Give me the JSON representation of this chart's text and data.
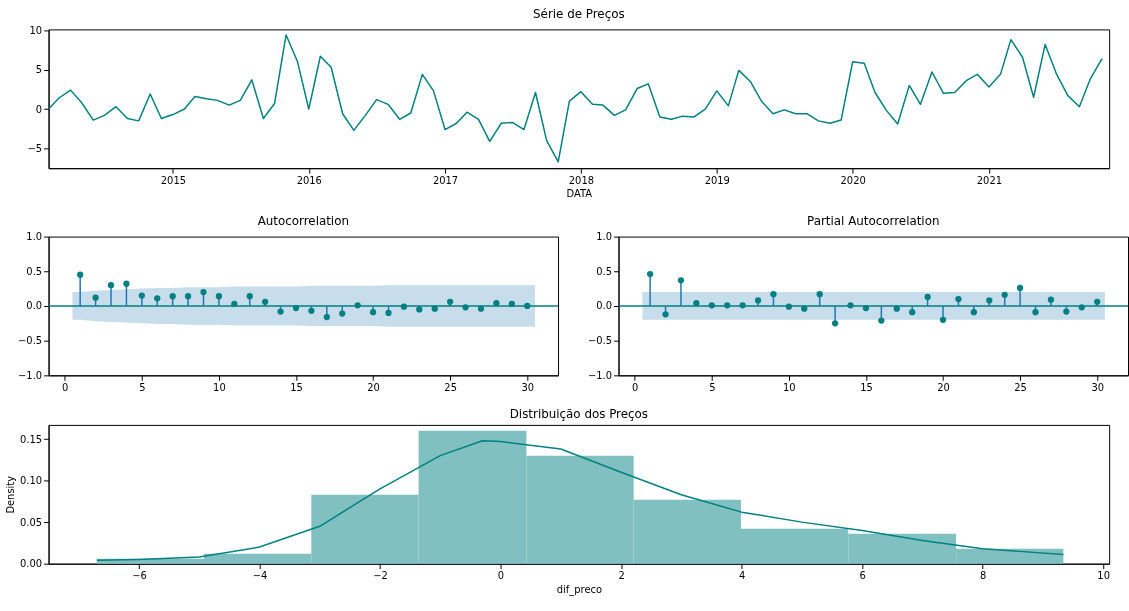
{
  "chart_data": [
    {
      "type": "line",
      "title": "Série de Preços",
      "xlabel": "DATA",
      "xlim": [
        "2014-02-01",
        "2021-11-20"
      ],
      "xticks": [
        "2015",
        "2016",
        "2017",
        "2018",
        "2019",
        "2020",
        "2021"
      ],
      "ylim": [
        -7.5,
        10.1
      ],
      "yticks": [
        {
          "value": -5,
          "label": "−5"
        },
        0,
        5,
        10
      ],
      "x": [
        "2014-02",
        "2014-03",
        "2014-04",
        "2014-05",
        "2014-06",
        "2014-07",
        "2014-08",
        "2014-09",
        "2014-10",
        "2014-11",
        "2014-12",
        "2015-01",
        "2015-02",
        "2015-03",
        "2015-04",
        "2015-05",
        "2015-06",
        "2015-07",
        "2015-08",
        "2015-09",
        "2015-10",
        "2015-11",
        "2015-12",
        "2016-01",
        "2016-02",
        "2016-03",
        "2016-04",
        "2016-05",
        "2016-06",
        "2016-07",
        "2016-08",
        "2016-09",
        "2016-10",
        "2016-11",
        "2016-12",
        "2017-01",
        "2017-02",
        "2017-03",
        "2017-04",
        "2017-05",
        "2017-06",
        "2017-07",
        "2017-08",
        "2017-09",
        "2017-10",
        "2017-11",
        "2017-12",
        "2018-01",
        "2018-02",
        "2018-03",
        "2018-04",
        "2018-05",
        "2018-06",
        "2018-07",
        "2018-08",
        "2018-09",
        "2018-10",
        "2018-11",
        "2018-12",
        "2019-01",
        "2019-02",
        "2019-03",
        "2019-04",
        "2019-05",
        "2019-06",
        "2019-07",
        "2019-08",
        "2019-09",
        "2019-10",
        "2019-11",
        "2019-12",
        "2020-01",
        "2020-02",
        "2020-03",
        "2020-04",
        "2020-05",
        "2020-06",
        "2020-07",
        "2020-08",
        "2020-09",
        "2020-10",
        "2020-11",
        "2020-12",
        "2021-01",
        "2021-02",
        "2021-03",
        "2021-04",
        "2021-05",
        "2021-06",
        "2021-07",
        "2021-08",
        "2021-09",
        "2021-10",
        "2021-11"
      ],
      "series": [
        {
          "color": "#008080",
          "values": [
            0,
            1.4,
            2.4,
            0.8,
            -1.4,
            -0.8,
            0.3,
            -1.2,
            -1.5,
            1.9,
            -1.2,
            -0.7,
            0,
            1.6,
            1.3,
            1.1,
            0.5,
            1.1,
            3.7,
            -1.2,
            0.7,
            9.4,
            6.1,
            0,
            6.7,
            5.3,
            -0.6,
            -2.7,
            -0.8,
            1.2,
            0.6,
            -1.3,
            -0.5,
            4.4,
            2.3,
            -2.6,
            -1.8,
            -0.4,
            -1.3,
            -4.1,
            -1.8,
            -1.7,
            -2.6,
            2.1,
            -4.0,
            -6.7,
            1.0,
            2.2,
            0.6,
            0.5,
            -0.8,
            -0.1,
            2.6,
            3.2,
            -1.0,
            -1.3,
            -0.9,
            -1.0,
            0.0,
            2.3,
            0.4,
            4.9,
            3.5,
            1.0,
            -0.6,
            -0.1,
            -0.6,
            -0.6,
            -1.5,
            -1.8,
            -1.4,
            6.0,
            5.8,
            2.1,
            -0.2,
            -1.9,
            3.0,
            0.6,
            4.7,
            2.0,
            2.1,
            3.6,
            4.4,
            2.8,
            4.4,
            8.8,
            6.6,
            1.5,
            8.2,
            4.5,
            1.7,
            0.3,
            3.9,
            6.4
          ]
        }
      ]
    },
    {
      "type": "lollipop",
      "title": "Autocorrelation",
      "xlim": [
        -1.05,
        32
      ],
      "xticks": [
        0,
        5,
        10,
        15,
        20,
        25,
        30
      ],
      "ylim": [
        -1,
        1
      ],
      "yticks": [
        {
          "value": -1,
          "label": "−1.0"
        },
        {
          "value": -0.5,
          "label": "−0.5"
        },
        {
          "value": 0,
          "label": "0.0"
        },
        {
          "value": 0.5,
          "label": "0.5"
        },
        {
          "value": 1,
          "label": "1.0"
        }
      ],
      "series": [
        {
          "type": "line",
          "color": "#008080",
          "x": [
            -1.05,
            0.5,
            1,
            2,
            3,
            4,
            5,
            6,
            7,
            8,
            9,
            10,
            11,
            12,
            13,
            14,
            15,
            16,
            17,
            18,
            19,
            20,
            21,
            22,
            23,
            24,
            25,
            26,
            27,
            28,
            29,
            30,
            30.5,
            32
          ],
          "values": [
            0,
            0,
            0,
            0,
            0,
            0,
            0,
            0,
            0,
            0,
            0,
            0,
            0,
            0,
            0,
            0,
            0,
            0,
            0,
            0,
            0,
            0,
            0,
            0,
            0,
            0,
            0,
            0,
            0,
            0,
            0,
            0,
            0,
            0
          ],
          "upper": [
            null,
            0.2,
            0.2,
            0.22,
            0.23,
            0.24,
            0.25,
            0.26,
            0.26,
            0.27,
            0.27,
            0.27,
            0.28,
            0.28,
            0.28,
            0.28,
            0.28,
            0.29,
            0.29,
            0.29,
            0.29,
            0.29,
            0.3,
            0.3,
            0.3,
            0.3,
            0.3,
            0.3,
            0.3,
            0.3,
            0.3,
            0.3,
            0.3,
            null
          ],
          "lower": [
            null,
            -0.2,
            -0.2,
            -0.22,
            -0.23,
            -0.24,
            -0.25,
            -0.26,
            -0.26,
            -0.27,
            -0.27,
            -0.27,
            -0.28,
            -0.28,
            -0.28,
            -0.28,
            -0.28,
            -0.29,
            -0.29,
            -0.29,
            -0.29,
            -0.29,
            -0.3,
            -0.3,
            -0.3,
            -0.3,
            -0.3,
            -0.3,
            -0.3,
            -0.3,
            -0.3,
            -0.3,
            -0.3,
            null
          ]
        },
        {
          "color": "#008080",
          "marker": "circle",
          "x": [
            1,
            2,
            3,
            4,
            5,
            6,
            7,
            8,
            9,
            10,
            11,
            12,
            13,
            14,
            15,
            16,
            17,
            18,
            19,
            20,
            21,
            22,
            23,
            24,
            25,
            26,
            27,
            28,
            29,
            30
          ],
          "values": [
            0.45,
            0.12,
            0.3,
            0.32,
            0.15,
            0.11,
            0.14,
            0.14,
            0.2,
            0.14,
            0.03,
            0.14,
            0.06,
            -0.08,
            -0.03,
            -0.07,
            -0.16,
            -0.11,
            0.01,
            -0.09,
            -0.1,
            -0.01,
            -0.05,
            -0.04,
            0.06,
            -0.02,
            -0.04,
            0.04,
            0.03,
            0.0
          ]
        }
      ]
    },
    {
      "type": "lollipop",
      "title": "Partial Autocorrelation",
      "xlim": [
        -1.05,
        32
      ],
      "xticks": [
        0,
        5,
        10,
        15,
        20,
        25,
        30
      ],
      "ylim": [
        -1,
        1
      ],
      "yticks": [
        {
          "value": -1,
          "label": "−1.0"
        },
        {
          "value": -0.5,
          "label": "−0.5"
        },
        {
          "value": 0,
          "label": "0.0"
        },
        {
          "value": 0.5,
          "label": "0.5"
        },
        {
          "value": 1,
          "label": "1.0"
        }
      ],
      "series": [
        {
          "type": "line",
          "color": "#008080",
          "x": [
            -1.05,
            0.5,
            30.5,
            32
          ],
          "values": [
            0,
            0,
            0,
            0
          ],
          "upper": [
            null,
            0.2,
            0.2,
            null
          ],
          "lower": [
            null,
            -0.2,
            -0.2,
            null
          ]
        },
        {
          "color": "#008080",
          "marker": "circle",
          "x": [
            1,
            2,
            3,
            4,
            5,
            6,
            7,
            8,
            9,
            10,
            11,
            12,
            13,
            14,
            15,
            16,
            17,
            18,
            19,
            20,
            21,
            22,
            23,
            24,
            25,
            26,
            27,
            28,
            29,
            30
          ],
          "values": [
            0.46,
            -0.12,
            0.37,
            0.04,
            0.01,
            0.01,
            0.01,
            0.08,
            0.17,
            -0.01,
            -0.04,
            0.17,
            -0.25,
            0.01,
            -0.03,
            -0.21,
            -0.04,
            -0.09,
            0.13,
            -0.2,
            0.1,
            -0.09,
            0.08,
            0.16,
            0.26,
            -0.09,
            0.09,
            -0.08,
            -0.02,
            0.06
          ]
        }
      ]
    },
    {
      "type": "histogram",
      "title": "Distribuição dos Preços",
      "xlabel": "dif_preco",
      "ylabel": "Density",
      "xlim": [
        -7.5,
        10.1
      ],
      "xticks": [
        {
          "value": -6,
          "label": "−6"
        },
        {
          "value": -4,
          "label": "−4"
        },
        {
          "value": -2,
          "label": "−2"
        },
        0,
        2,
        4,
        6,
        8,
        10
      ],
      "ylim": [
        0,
        0.167
      ],
      "yticks": [
        {
          "value": 0,
          "label": "0.00"
        },
        {
          "value": 0.05,
          "label": "0.05"
        },
        {
          "value": 0.1,
          "label": "0.10"
        },
        {
          "value": 0.15,
          "label": "0.15"
        }
      ],
      "series": [
        {
          "color": "#80c0c0",
          "bins": [
            -6.7,
            -4.92,
            -3.14,
            -1.36,
            0.43,
            2.21,
            3.99,
            5.77,
            7.56,
            9.34
          ],
          "values": [
            0.006,
            0.012,
            0.083,
            0.16,
            0.13,
            0.077,
            0.042,
            0.036,
            0.018
          ]
        },
        {
          "type": "line",
          "color": "#008080",
          "x": [
            -6.7,
            -6,
            -5,
            -4,
            -3,
            -2,
            -1,
            -0.3,
            0,
            1,
            2,
            3,
            4,
            5,
            6,
            7,
            8,
            9.34
          ],
          "values": [
            0.004,
            0.005,
            0.008,
            0.02,
            0.045,
            0.09,
            0.13,
            0.148,
            0.147,
            0.138,
            0.11,
            0.083,
            0.062,
            0.05,
            0.04,
            0.028,
            0.018,
            0.011
          ]
        }
      ]
    }
  ]
}
